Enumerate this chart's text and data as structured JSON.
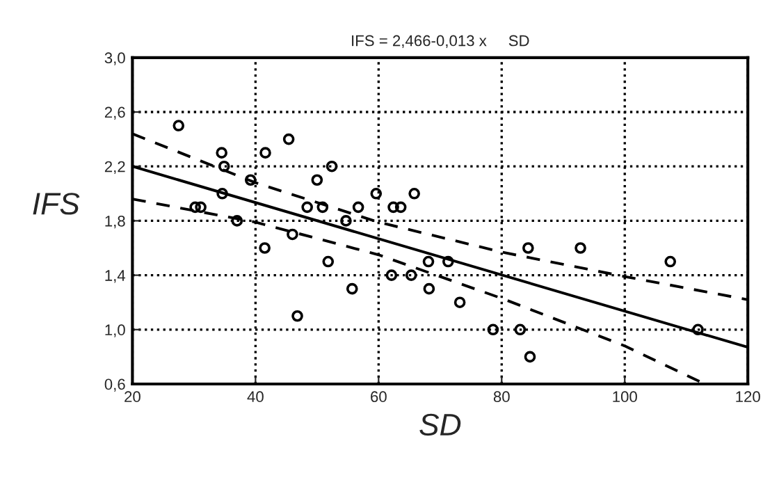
{
  "chart_data": {
    "type": "scatter",
    "title": "IFS = 2,466-0,013 x     SD",
    "xlabel": "SD",
    "ylabel": "IFS",
    "xlim": [
      20,
      120
    ],
    "ylim": [
      0.6,
      3.0
    ],
    "xticks": [
      20,
      40,
      60,
      80,
      100,
      120
    ],
    "yticks": [
      {
        "value": 0.6,
        "label": "0,6"
      },
      {
        "value": 1.0,
        "label": "1,0"
      },
      {
        "value": 1.4,
        "label": "1,4"
      },
      {
        "value": 1.8,
        "label": "1,8"
      },
      {
        "value": 2.2,
        "label": "2,2"
      },
      {
        "value": 2.6,
        "label": "2,6"
      },
      {
        "value": 3.0,
        "label": "3,0"
      }
    ],
    "grid": true,
    "legend": false,
    "series": [
      {
        "marker": "circle",
        "color": "#000000",
        "x": [
          27.5,
          34.5,
          34.9,
          34.6,
          30.2,
          31.1,
          37.0,
          39.2,
          41.6,
          41.5,
          45.4,
          46.0,
          46.8,
          48.4,
          50.0,
          50.9,
          51.8,
          52.4,
          54.7,
          55.7,
          56.7,
          59.6,
          62.1,
          62.4,
          63.6,
          65.3,
          65.8,
          68.1,
          68.2,
          71.3,
          73.2,
          78.6,
          83.0,
          84.3,
          84.6,
          92.8,
          107.4,
          111.9
        ],
        "values": [
          2.5,
          2.3,
          2.2,
          2.0,
          1.9,
          1.9,
          1.8,
          2.1,
          2.3,
          1.6,
          2.4,
          1.7,
          1.1,
          1.9,
          2.1,
          1.9,
          1.5,
          2.2,
          1.8,
          1.3,
          1.9,
          2.0,
          1.4,
          1.9,
          1.9,
          1.4,
          2.0,
          1.5,
          1.3,
          1.5,
          1.2,
          1.0,
          1.0,
          1.6,
          0.8,
          1.6,
          1.5,
          1.0
        ]
      },
      {
        "type": "line",
        "line_style": "solid",
        "color": "#000000",
        "x": [
          20,
          120
        ],
        "values": [
          2.2,
          0.87
        ]
      },
      {
        "type": "line",
        "line_style": "dashed",
        "color": "#000000",
        "x": [
          20,
          40,
          60,
          80,
          100,
          120
        ],
        "values": [
          2.44,
          2.08,
          1.79,
          1.57,
          1.39,
          1.22
        ]
      },
      {
        "type": "line",
        "line_style": "dashed",
        "color": "#000000",
        "x": [
          20,
          40,
          60,
          80,
          100,
          113
        ],
        "values": [
          1.96,
          1.79,
          1.55,
          1.23,
          0.88,
          0.6
        ]
      }
    ]
  }
}
